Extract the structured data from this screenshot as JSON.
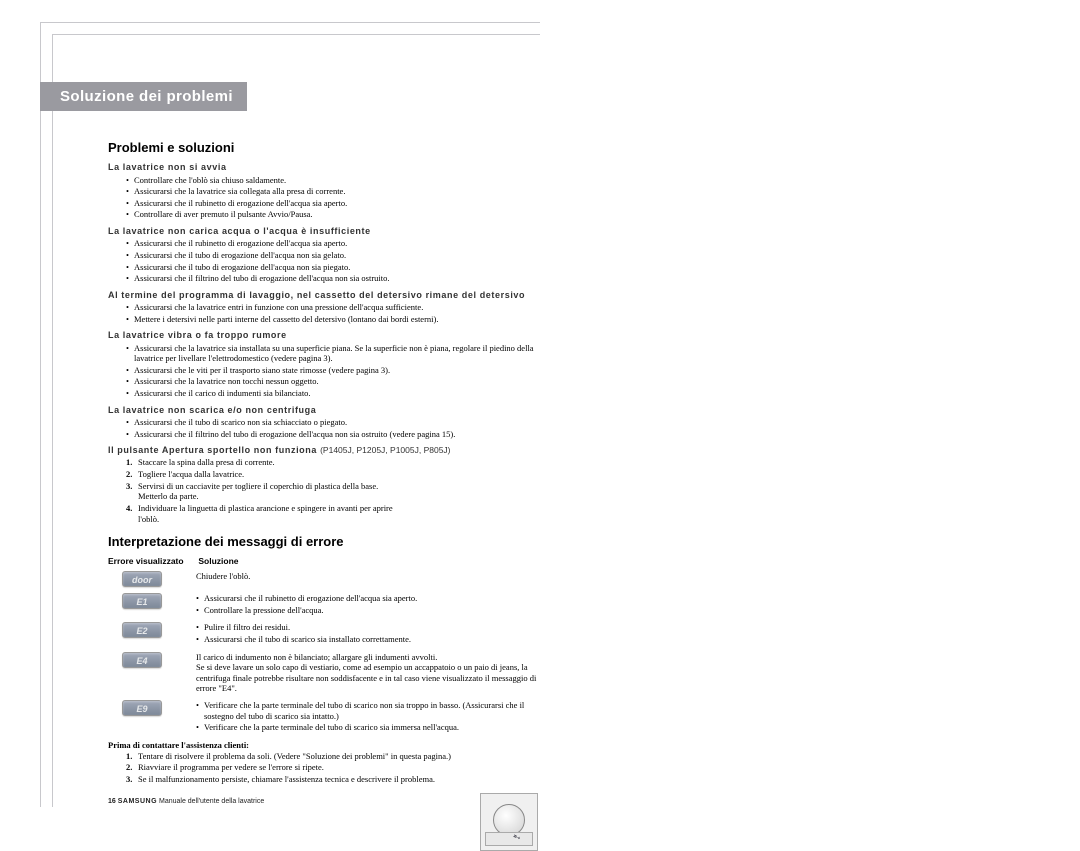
{
  "page": {
    "title_banner": "Soluzione dei problemi",
    "footer_page": "16",
    "footer_brand": "SAMSUNG",
    "footer_text": "Manuale dell'utente della lavatrice"
  },
  "section1": {
    "heading": "Problemi e soluzioni",
    "groups": [
      {
        "title": "La lavatrice non si avvia",
        "items": [
          "Controllare che l'oblò sia chiuso saldamente.",
          "Assicurarsi che la lavatrice sia collegata alla presa di corrente.",
          "Assicurarsi che il rubinetto di erogazione dell'acqua sia aperto.",
          "Controllare di aver premuto il pulsante Avvio/Pausa."
        ]
      },
      {
        "title": "La lavatrice non carica acqua o l'acqua è insufficiente",
        "items": [
          "Assicurarsi che il rubinetto di erogazione dell'acqua sia aperto.",
          "Assicurarsi che il tubo di erogazione dell'acqua non sia gelato.",
          "Assicurarsi che il tubo di erogazione dell'acqua non sia piegato.",
          "Assicurarsi che il filtrino del tubo di erogazione dell'acqua non sia ostruito."
        ]
      },
      {
        "title": "Al termine del programma di lavaggio, nel cassetto del detersivo rimane del detersivo",
        "items": [
          "Assicurarsi che la lavatrice entri in funzione con una pressione dell'acqua sufficiente.",
          "Mettere i detersivi nelle parti interne del cassetto del detersivo (lontano dai bordi esterni)."
        ]
      },
      {
        "title": "La lavatrice vibra o fa troppo rumore",
        "items": [
          "Assicurarsi che la lavatrice sia installata su una superficie piana. Se la superficie non è piana, regolare il piedino della lavatrice per livellare l'elettrodomestico (vedere pagina 3).",
          "Assicurarsi che le viti per il trasporto siano state rimosse (vedere pagina 3).",
          "Assicurarsi che la lavatrice non tocchi nessun oggetto.",
          "Assicurarsi che il carico di indumenti sia bilanciato."
        ]
      },
      {
        "title": "La lavatrice non scarica e/o non centrifuga",
        "items": [
          "Assicurarsi che il tubo di scarico non sia schiacciato o piegato.",
          "Assicurarsi che il filtrino del tubo di erogazione dell'acqua non sia ostruito (vedere pagina 15)."
        ]
      }
    ],
    "door_group": {
      "title": "Il pulsante Apertura sportello non funziona",
      "note": "(P1405J, P1205J, P1005J, P805J)",
      "steps": [
        "Staccare la spina dalla presa di corrente.",
        "Togliere l'acqua dalla lavatrice.",
        "Servirsi di un cacciavite per togliere il coperchio di plastica della base. Metterlo da parte.",
        "Individuare la linguetta di plastica arancione e spingere in avanti per aprire l'oblò."
      ]
    }
  },
  "section2": {
    "heading": "Interpretazione dei messaggi di errore",
    "col1": "Errore visualizzato",
    "col2": "Soluzione",
    "rows": [
      {
        "code": "door",
        "lines": [
          "Chiudere l'oblò."
        ],
        "bulleted": false
      },
      {
        "code": "E1",
        "lines": [
          "Assicurarsi che il rubinetto di erogazione dell'acqua sia aperto.",
          "Controllare la pressione dell'acqua."
        ],
        "bulleted": true
      },
      {
        "code": "E2",
        "lines": [
          "Pulire il filtro dei residui.",
          "Assicurarsi che il tubo di scarico sia installato correttamente."
        ],
        "bulleted": true
      },
      {
        "code": "E4",
        "lines": [
          "Il carico di indumento non è bilanciato; allargare gli indumenti avvolti.",
          "Se si deve lavare un solo capo di vestiario, come ad esempio un accappatoio o un paio di jeans, la centrifuga finale potrebbe risultare non soddisfacente e in tal caso viene visualizzato il messaggio di errore \"E4\"."
        ],
        "bulleted": false
      },
      {
        "code": "E9",
        "lines": [
          "Verificare che la parte terminale del tubo di scarico non sia troppo in basso. (Assicurarsi che il sostegno del tubo di scarico sia intatto.)",
          "Verificare che la parte terminale del tubo di scarico sia immersa nell'acqua."
        ],
        "bulleted": true
      }
    ],
    "prima_title": "Prima di contattare l'assistenza clienti:",
    "prima_steps": [
      "Tentare di risolvere il problema da soli. (Vedere \"Soluzione dei problemi\" in questa pagina.)",
      "Riavviare il programma per vedere se l'errore si ripete.",
      "Se il malfunzionamento persiste, chiamare l'assistenza tecnica e descrivere il problema."
    ]
  }
}
